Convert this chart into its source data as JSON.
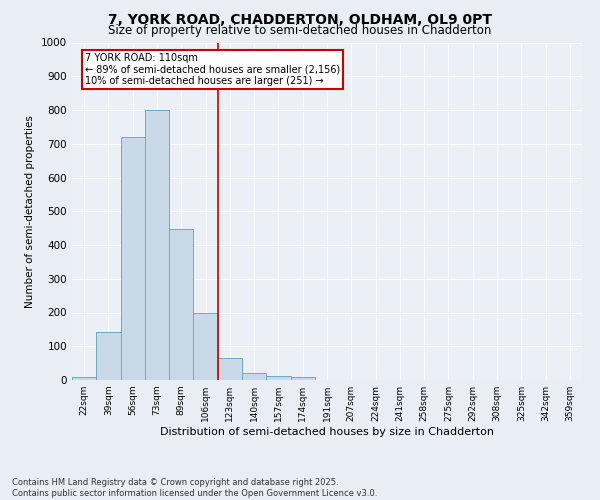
{
  "title_line1": "7, YORK ROAD, CHADDERTON, OLDHAM, OL9 0PT",
  "title_line2": "Size of property relative to semi-detached houses in Chadderton",
  "xlabel": "Distribution of semi-detached houses by size in Chadderton",
  "ylabel": "Number of semi-detached properties",
  "categories": [
    "22sqm",
    "39sqm",
    "56sqm",
    "73sqm",
    "89sqm",
    "106sqm",
    "123sqm",
    "140sqm",
    "157sqm",
    "174sqm",
    "191sqm",
    "207sqm",
    "224sqm",
    "241sqm",
    "258sqm",
    "275sqm",
    "292sqm",
    "308sqm",
    "325sqm",
    "342sqm",
    "359sqm"
  ],
  "values": [
    8,
    143,
    720,
    800,
    447,
    200,
    65,
    20,
    13,
    10,
    0,
    0,
    0,
    0,
    0,
    0,
    0,
    0,
    0,
    0,
    0
  ],
  "bar_color": "#c9d9e8",
  "bar_edge_color": "#6fa8c8",
  "vline_label": "7 YORK ROAD: 110sqm",
  "annotation_smaller": "← 89% of semi-detached houses are smaller (2,156)",
  "annotation_larger": "10% of semi-detached houses are larger (251) →",
  "ylim": [
    0,
    1000
  ],
  "yticks": [
    0,
    100,
    200,
    300,
    400,
    500,
    600,
    700,
    800,
    900,
    1000
  ],
  "bg_color": "#e8eef4",
  "plot_bg_color": "#eaf0f6",
  "footer_line1": "Contains HM Land Registry data © Crown copyright and database right 2025.",
  "footer_line2": "Contains public sector information licensed under the Open Government Licence v3.0.",
  "annotation_box_color": "#cc0000",
  "vline_color": "#cc0000",
  "vline_pos": 5.5,
  "title1_fontsize": 10,
  "title2_fontsize": 8.5,
  "xlabel_fontsize": 8,
  "ylabel_fontsize": 7.5,
  "tick_fontsize": 6.5,
  "ytick_fontsize": 7.5,
  "annotation_fontsize": 7,
  "footer_fontsize": 6
}
